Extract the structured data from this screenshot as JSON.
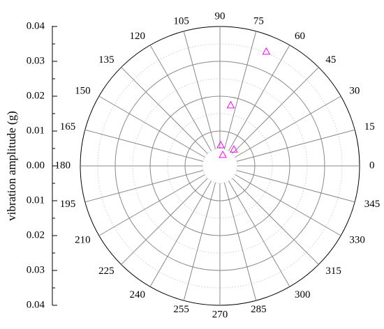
{
  "chart_data": {
    "type": "polar-scatter",
    "y_label": "vibration amplitude (g)",
    "rlim": [
      0,
      0.04
    ],
    "rticks": [
      {
        "value": 0,
        "label": "0.00"
      },
      {
        "value": 0.01,
        "label": "0.01"
      },
      {
        "value": 0.02,
        "label": "0.02"
      },
      {
        "value": 0.03,
        "label": "0.03"
      },
      {
        "value": 0.04,
        "label": "0.04"
      }
    ],
    "thetaticks": [
      0,
      15,
      30,
      45,
      60,
      75,
      90,
      105,
      120,
      135,
      150,
      165,
      180,
      195,
      210,
      225,
      240,
      255,
      270,
      285,
      300,
      315,
      330,
      345
    ],
    "grid": true,
    "series": [
      {
        "color": "#ff00ff",
        "marker": "triangle",
        "theta": [
          68,
          80,
          50,
          88,
          76
        ],
        "r": [
          0.0354,
          0.0177,
          0.0062,
          0.006,
          0.0033
        ]
      }
    ]
  }
}
